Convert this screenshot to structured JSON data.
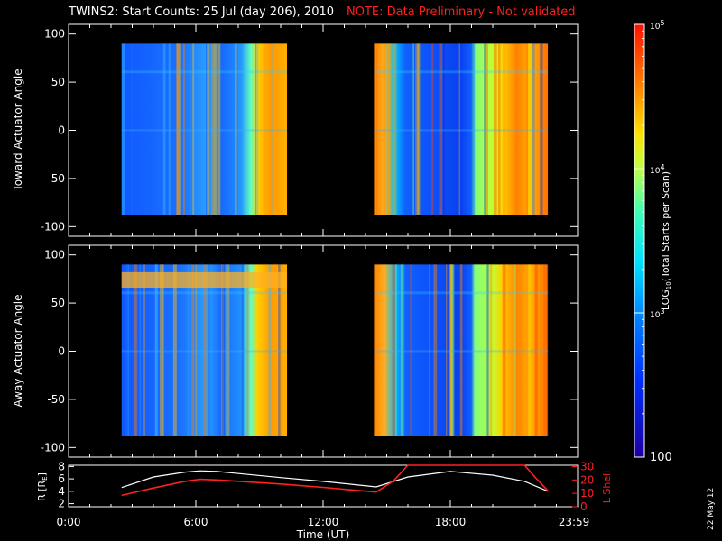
{
  "title": "TWINS2: Start Counts: 25 Jul (day 206), 2010",
  "note": "NOTE: Data Preliminary - Not validated",
  "date_stamp": "22 May 12",
  "colors": {
    "note": "#ff2020",
    "frame": "#ffffff",
    "background": "#000000",
    "l_shell": "#ff2020",
    "r_re": "#ffffff"
  },
  "chart_data": [
    {
      "type": "heatmap",
      "ylabel": "Toward Actuator Angle",
      "ylim": [
        -110,
        110
      ],
      "yticks": [
        100,
        50,
        0,
        -50,
        -100
      ],
      "xlim": [
        0,
        24
      ],
      "data_coverage_hours": [
        [
          2.5,
          10.3
        ],
        [
          14.4,
          22.6
        ]
      ],
      "angle_range": [
        -88,
        90
      ]
    },
    {
      "type": "heatmap",
      "ylabel": "Away Actuator Angle",
      "ylim": [
        -110,
        110
      ],
      "yticks": [
        100,
        50,
        0,
        -50,
        -100
      ],
      "xlim": [
        0,
        24
      ],
      "data_coverage_hours": [
        [
          2.5,
          10.3
        ],
        [
          14.4,
          22.6
        ]
      ],
      "angle_range": [
        -88,
        90
      ]
    },
    {
      "type": "line",
      "xlabel": "Time (UT)",
      "xlim": [
        0,
        24
      ],
      "xticks": [
        "0:00",
        "6:00",
        "12:00",
        "18:00",
        "23:59"
      ],
      "ylabel_left": "R [R",
      "ylabel_left_sub": "E",
      "ylabel_left_end": "]",
      "ylim_left": [
        1.5,
        8.2
      ],
      "yticks_left": [
        8,
        6,
        4,
        2
      ],
      "ylabel_right": "L Shell",
      "ylim_right": [
        0,
        31
      ],
      "yticks_right": [
        30,
        20,
        10,
        0
      ],
      "series": [
        {
          "axis": "left",
          "x": [
            2.5,
            4.0,
            5.5,
            6.2,
            7.0,
            10.0,
            12.0,
            14.5,
            16.0,
            18.0,
            20.0,
            21.5,
            22.6
          ],
          "y": [
            4.6,
            6.3,
            7.1,
            7.3,
            7.2,
            6.2,
            5.6,
            4.7,
            6.3,
            7.2,
            6.6,
            5.6,
            4.0
          ]
        },
        {
          "axis": "right",
          "x": [
            2.5,
            4.0,
            5.5,
            6.2,
            7.0,
            10.0,
            12.0,
            14.5,
            15.3,
            16.0,
            21.5,
            22.0,
            22.6
          ],
          "y": [
            8.5,
            14.0,
            19.0,
            20.5,
            20.0,
            17.0,
            14.5,
            11.0,
            19.0,
            31.0,
            31.0,
            22.0,
            12.0
          ]
        }
      ]
    },
    {
      "type": "heatmap_colorbar",
      "label_base": "LOG",
      "label_sub": "10",
      "label_rest": "(Total Starts per Scan)",
      "range": [
        100,
        100000
      ],
      "scale": "log",
      "tick_base": "10",
      "tick_exps": [
        "5",
        "4",
        "3"
      ],
      "tick_exponent_values": [
        5,
        4,
        3
      ],
      "bottom_label": "100"
    }
  ]
}
